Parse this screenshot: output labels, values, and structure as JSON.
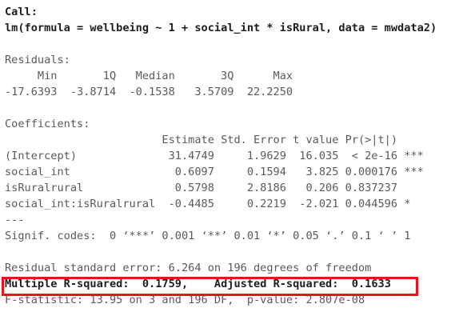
{
  "console": {
    "sections": [
      {
        "lines": [
          "Call:",
          "lm(formula = wellbeing ~ 1 + social_int * isRural, data = mwdata2)"
        ]
      },
      {
        "lines": [
          "Residuals:",
          "     Min       1Q   Median       3Q      Max",
          "-17.6393  -3.8714  -0.1538   3.5709  22.2250"
        ]
      },
      {
        "lines": [
          "Coefficients:",
          "                        Estimate Std. Error t value Pr(>|t|)",
          "(Intercept)              31.4749     1.9629  16.035  < 2e-16 ***",
          "social_int                0.6097     0.1594   3.825 0.000176 ***",
          "isRuralrural              0.5798     2.8186   0.206 0.837237",
          "social_int:isRuralrural  -0.4485     0.2219  -2.021 0.044596 *",
          "---",
          "Signif. codes:  0 ‘***’ 0.001 ‘**’ 0.01 ‘*’ 0.05 ‘.’ 0.1 ‘ ’ 1"
        ]
      },
      {
        "lines": [
          "Residual standard error: 6.264 on 196 degrees of freedom",
          "Multiple R-squared:  0.1759,\tAdjusted R-squared:  0.1633 ",
          "F-statistic: 13.95 on 3 and 196 DF,  p-value: 2.807e-08"
        ]
      }
    ]
  }
}
